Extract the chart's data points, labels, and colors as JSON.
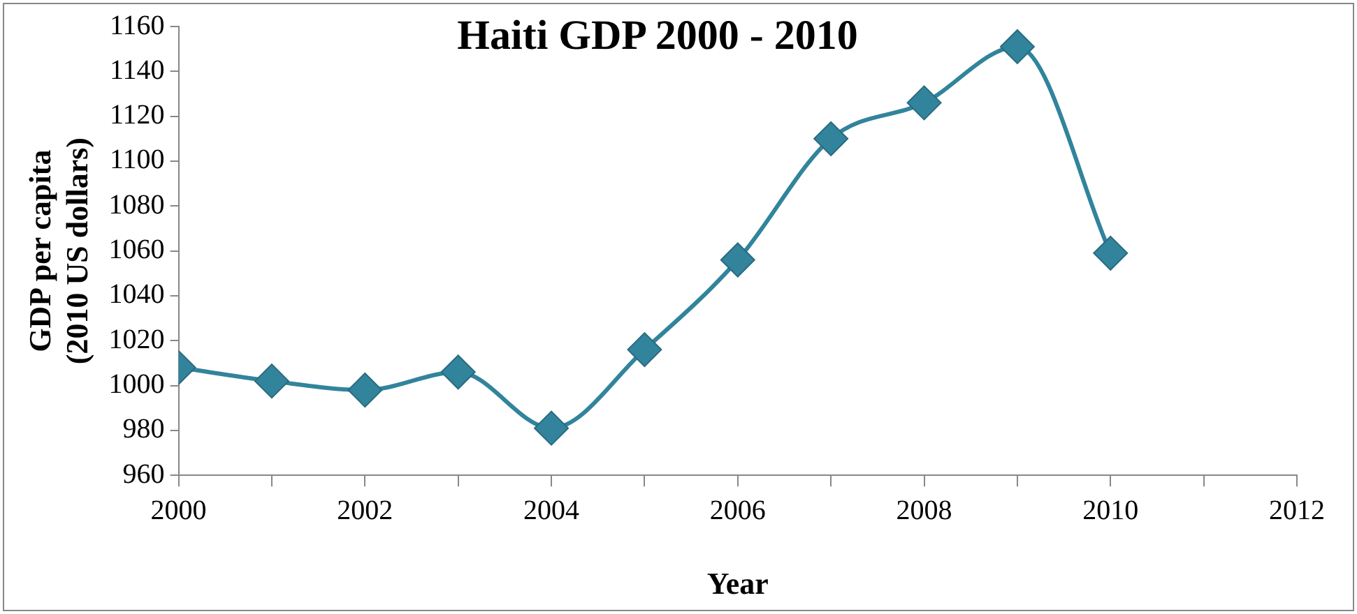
{
  "chart_data": {
    "type": "line",
    "title": "Haiti GDP 2000 - 2010",
    "xlabel": "Year",
    "ylabel": "GDP per capita\n(2010 US dollars)",
    "x": [
      2000,
      2001,
      2002,
      2003,
      2004,
      2005,
      2006,
      2007,
      2008,
      2009,
      2010
    ],
    "series": [
      {
        "color": "#31849b",
        "values": [
          1008,
          1002,
          998,
          1006,
          981,
          1016,
          1056,
          1110,
          1126,
          1151,
          1059
        ]
      }
    ],
    "xlim": [
      2000,
      2012
    ],
    "xticks": [
      2000,
      {
        "value": 2001,
        "label": null
      },
      2002,
      {
        "value": 2003,
        "label": null
      },
      2004,
      {
        "value": 2005,
        "label": null
      },
      2006,
      {
        "value": 2007,
        "label": null
      },
      2008,
      {
        "value": 2009,
        "label": null
      },
      2010,
      {
        "value": 2011,
        "label": null
      },
      2012
    ],
    "ylim": [
      960,
      1160
    ],
    "yticks": [
      960,
      980,
      1000,
      1020,
      1040,
      1060,
      1080,
      1100,
      1120,
      1140,
      1160
    ],
    "grid": false,
    "legend": false,
    "marker": "diamond",
    "line_style": "solid"
  }
}
